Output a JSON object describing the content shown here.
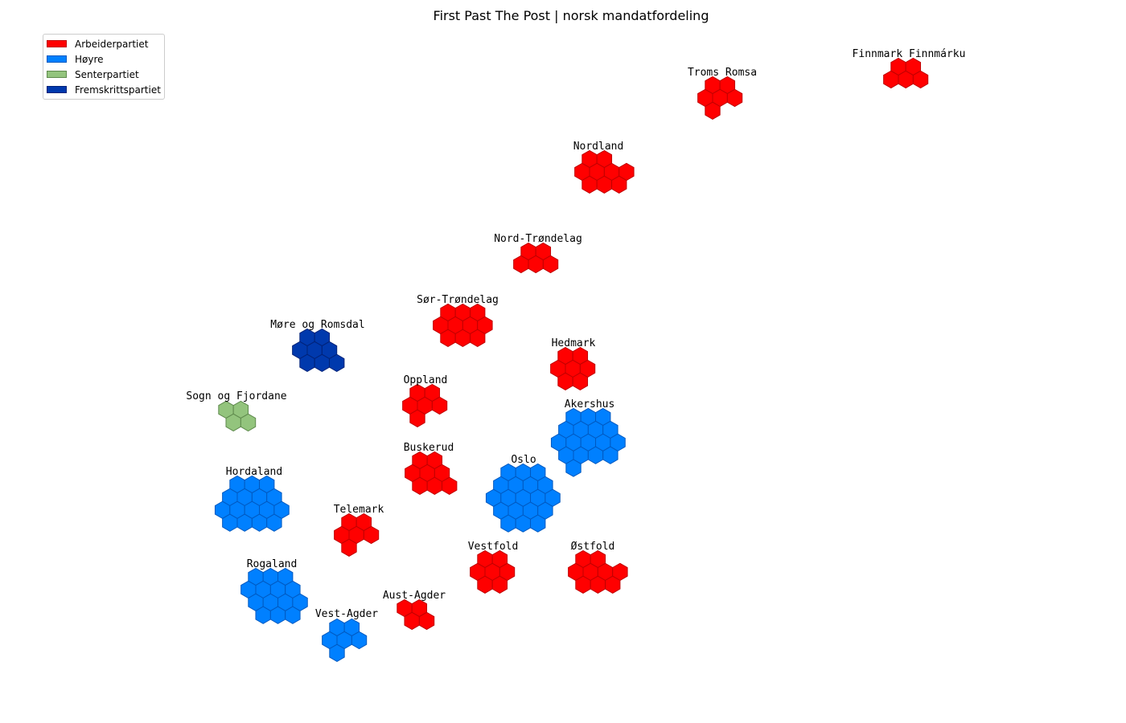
{
  "title": "First Past The Post | norsk mandatfordeling",
  "parties": [
    {
      "key": "ap",
      "name": "Arbeiderpartiet",
      "fill": "#ff0000",
      "edge": "#c00000"
    },
    {
      "key": "h",
      "name": "Høyre",
      "fill": "#0080ff",
      "edge": "#0059c0"
    },
    {
      "key": "sp",
      "name": "Senterpartiet",
      "fill": "#93c47d",
      "edge": "#5f8a4d"
    },
    {
      "key": "frp",
      "name": "Fremskrittspartiet",
      "fill": "#0039ad",
      "edge": "#002278"
    }
  ],
  "chart_data": {
    "type": "hex-cartogram",
    "title": "First Past The Post | norsk mandatfordeling",
    "legend_position": "top-left",
    "districts": [
      {
        "name": "Finnmark Finnmárku",
        "party": "Arbeiderpartiet",
        "seats": 5
      },
      {
        "name": "Troms Romsa",
        "party": "Arbeiderpartiet",
        "seats": 6
      },
      {
        "name": "Nordland",
        "party": "Arbeiderpartiet",
        "seats": 9
      },
      {
        "name": "Nord-Trøndelag",
        "party": "Arbeiderpartiet",
        "seats": 5
      },
      {
        "name": "Sør-Trøndelag",
        "party": "Arbeiderpartiet",
        "seats": 10
      },
      {
        "name": "Møre og Romsdal",
        "party": "Fremskrittspartiet",
        "seats": 8
      },
      {
        "name": "Hedmark",
        "party": "Arbeiderpartiet",
        "seats": 7
      },
      {
        "name": "Oppland",
        "party": "Arbeiderpartiet",
        "seats": 6
      },
      {
        "name": "Sogn og Fjordane",
        "party": "Senterpartiet",
        "seats": 4
      },
      {
        "name": "Akershus",
        "party": "Høyre",
        "seats": 17
      },
      {
        "name": "Buskerud",
        "party": "Arbeiderpartiet",
        "seats": 8
      },
      {
        "name": "Oslo",
        "party": "Høyre",
        "seats": 19
      },
      {
        "name": "Hordaland",
        "party": "Høyre",
        "seats": 16
      },
      {
        "name": "Telemark",
        "party": "Arbeiderpartiet",
        "seats": 6
      },
      {
        "name": "Vestfold",
        "party": "Arbeiderpartiet",
        "seats": 7
      },
      {
        "name": "Østfold",
        "party": "Arbeiderpartiet",
        "seats": 9
      },
      {
        "name": "Rogaland",
        "party": "Høyre",
        "seats": 14
      },
      {
        "name": "Aust-Agder",
        "party": "Arbeiderpartiet",
        "seats": 4
      },
      {
        "name": "Vest-Agder",
        "party": "Høyre",
        "seats": 6
      }
    ]
  }
}
